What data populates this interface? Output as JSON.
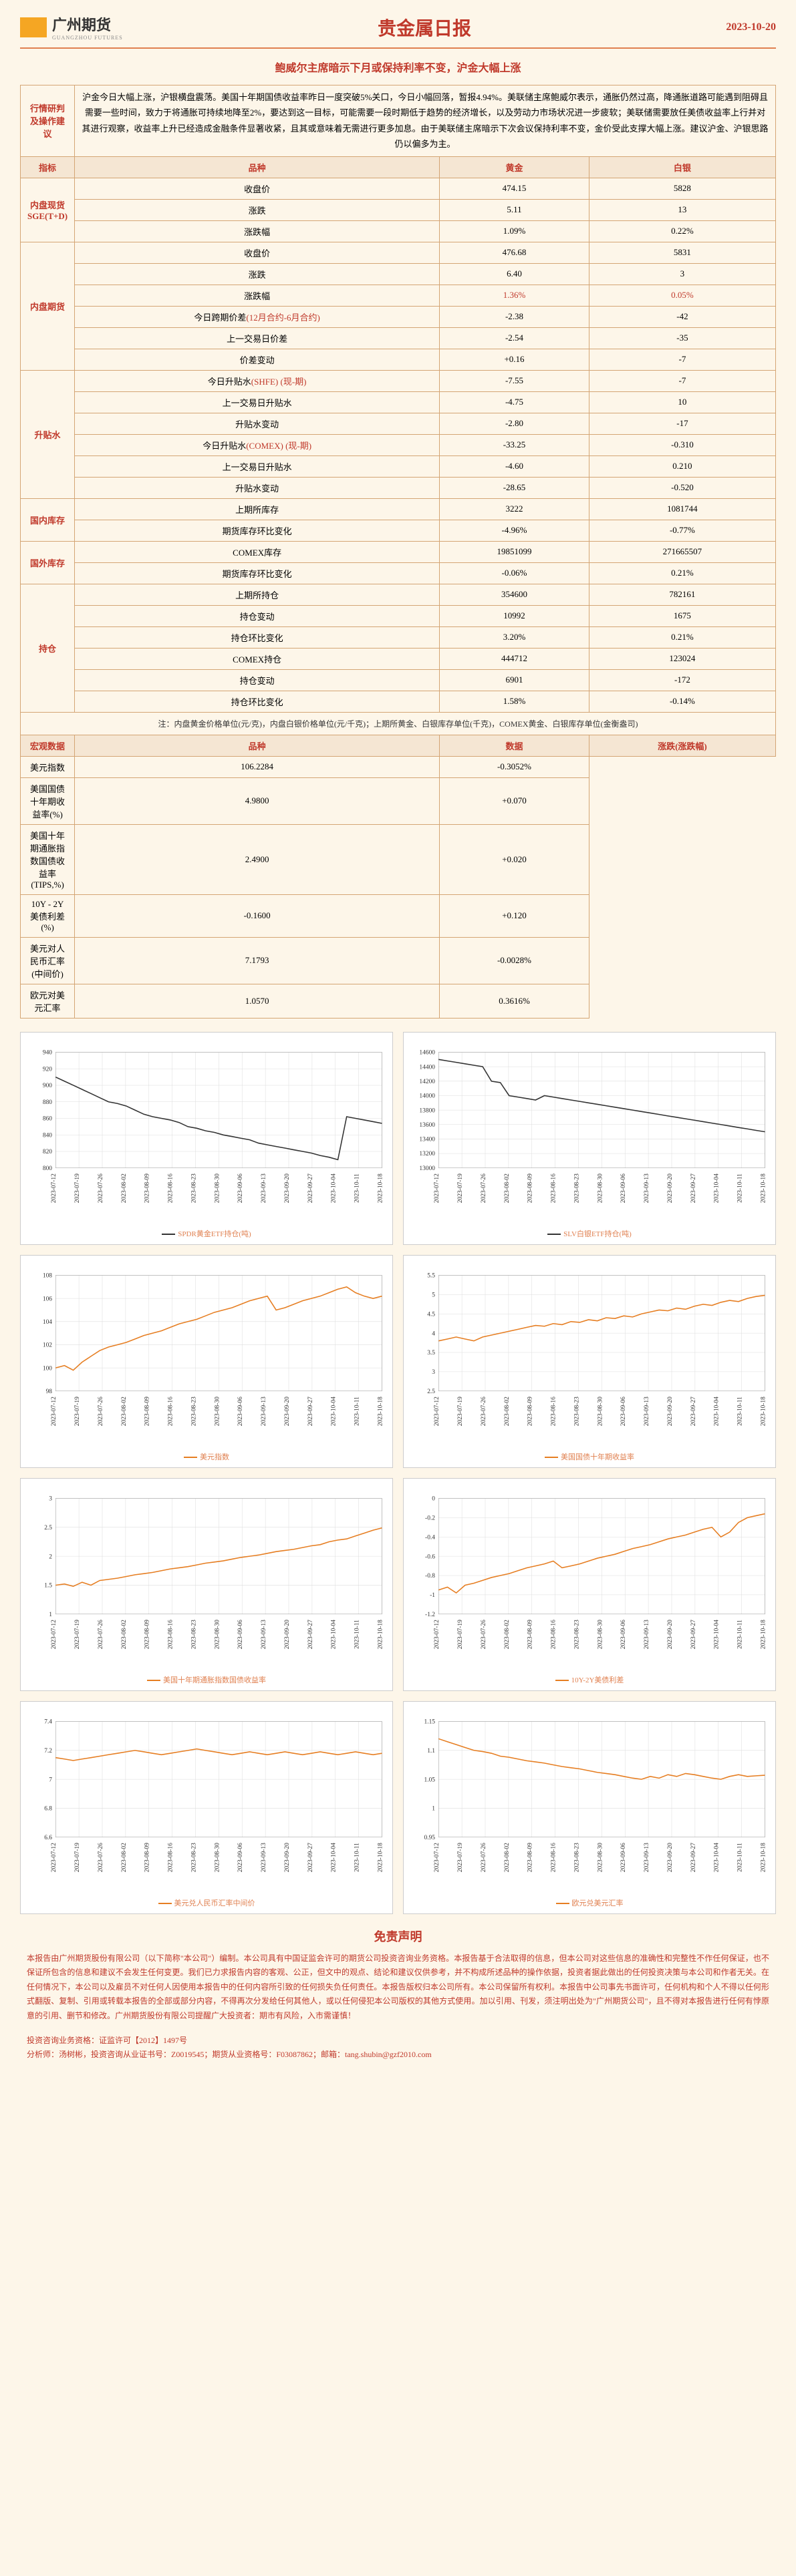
{
  "header": {
    "logo_text": "广州期货",
    "logo_sub": "GUANGZHOU FUTURES",
    "title": "贵金属日报",
    "date": "2023-10-20"
  },
  "subtitle": "鲍威尔主席暗示下月或保持利率不变，沪金大幅上涨",
  "analysis": {
    "label": "行情研判及操作建议",
    "text": "沪金今日大幅上涨，沪银横盘震荡。美国十年期国债收益率昨日一度突破5%关口，今日小幅回落，暂报4.94%。美联储主席鲍威尔表示，通胀仍然过高，降通胀道路可能遇到阻碍且需要一些时间，致力于将通胀可持续地降至2%，要达到这一目标，可能需要一段时期低于趋势的经济增长，以及劳动力市场状况进一步疲软；美联储需要放任美债收益率上行并对其进行观察，收益率上升已经造成金融条件显著收紧，且其或意味着无需进行更多加息。由于美联储主席暗示下次会议保持利率不变，金价受此支撑大幅上涨。建议沪金、沪银思路仍以偏多为主。"
  },
  "main_headers": [
    "指标",
    "品种",
    "黄金",
    "白银"
  ],
  "sections": [
    {
      "label": "内盘现货SGE(T+D)",
      "rows": [
        [
          "收盘价",
          "474.15",
          "5828"
        ],
        [
          "涨跌",
          "5.11",
          "13"
        ],
        [
          "涨跌幅",
          "1.09%",
          "0.22%"
        ]
      ]
    },
    {
      "label": "内盘期货",
      "rows": [
        [
          "收盘价",
          "476.68",
          "5831"
        ],
        [
          "涨跌",
          "6.40",
          "3"
        ],
        [
          "涨跌幅",
          "1.36%",
          "0.05%"
        ],
        [
          "今日跨期价差(12月合约-6月合约)",
          "-2.38",
          "-42"
        ],
        [
          "上一交易日价差",
          "-2.54",
          "-35"
        ],
        [
          "价差变动",
          "+0.16",
          "-7"
        ]
      ],
      "red_cells": [
        [
          2,
          1
        ],
        [
          2,
          2
        ]
      ]
    },
    {
      "label": "升贴水",
      "rows": [
        [
          "今日升贴水(SHFE) (现-期)",
          "-7.55",
          "-7"
        ],
        [
          "上一交易日升贴水",
          "-4.75",
          "10"
        ],
        [
          "升贴水变动",
          "-2.80",
          "-17"
        ],
        [
          "今日升贴水(COMEX) (现-期)",
          "-33.25",
          "-0.310"
        ],
        [
          "上一交易日升贴水",
          "-4.60",
          "0.210"
        ],
        [
          "升贴水变动",
          "-28.65",
          "-0.520"
        ]
      ]
    },
    {
      "label": "国内库存",
      "rows": [
        [
          "上期所库存",
          "3222",
          "1081744"
        ],
        [
          "期货库存环比变化",
          "-4.96%",
          "-0.77%"
        ]
      ]
    },
    {
      "label": "国外库存",
      "rows": [
        [
          "COMEX库存",
          "19851099",
          "271665507"
        ],
        [
          "期货库存环比变化",
          "-0.06%",
          "0.21%"
        ]
      ]
    },
    {
      "label": "持仓",
      "rows": [
        [
          "上期所持仓",
          "354600",
          "782161"
        ],
        [
          "持仓变动",
          "10992",
          "1675"
        ],
        [
          "持仓环比变化",
          "3.20%",
          "0.21%"
        ],
        [
          "COMEX持仓",
          "444712",
          "123024"
        ],
        [
          "持仓变动",
          "6901",
          "-172"
        ],
        [
          "持仓环比变化",
          "1.58%",
          "-0.14%"
        ]
      ]
    }
  ],
  "note": "注：内盘黄金价格单位(元/克)，内盘白银价格单位(元/千克)；上期所黄金、白银库存单位(千克)，COMEX黄金、白银库存单位(金衡盎司)",
  "macro": {
    "label": "宏观数据",
    "headers": [
      "品种",
      "数据",
      "涨跌(涨跌幅)"
    ],
    "rows": [
      [
        "美元指数",
        "106.2284",
        "-0.3052%"
      ],
      [
        "美国国债十年期收益率(%)",
        "4.9800",
        "+0.070"
      ],
      [
        "美国十年期通胀指数国债收益率(TIPS,%)",
        "2.4900",
        "+0.020"
      ],
      [
        "10Y - 2Y 美债利差(%)",
        "-0.1600",
        "+0.120"
      ],
      [
        "美元对人民币汇率(中间价)",
        "7.1793",
        "-0.0028%"
      ],
      [
        "欧元对美元汇率",
        "1.0570",
        "0.3616%"
      ]
    ]
  },
  "charts": [
    {
      "label": "SPDR黄金ETF持仓(吨)",
      "color": "#333333",
      "ylim": [
        800,
        940
      ],
      "yticks": [
        800,
        820,
        840,
        860,
        880,
        900,
        920,
        940
      ],
      "data": [
        910,
        905,
        900,
        895,
        890,
        885,
        880,
        878,
        875,
        870,
        865,
        862,
        860,
        858,
        855,
        850,
        848,
        845,
        843,
        840,
        838,
        836,
        834,
        830,
        828,
        826,
        824,
        822,
        820,
        818,
        815,
        813,
        810,
        862,
        860,
        858,
        856,
        854
      ]
    },
    {
      "label": "SLV白银ETF持仓(吨)",
      "color": "#333333",
      "ylim": [
        13000,
        14600
      ],
      "yticks": [
        13000,
        13200,
        13400,
        13600,
        13800,
        14000,
        14200,
        14400,
        14600
      ],
      "data": [
        14500,
        14480,
        14460,
        14440,
        14420,
        14400,
        14200,
        14180,
        14000,
        13980,
        13960,
        13940,
        14000,
        13980,
        13960,
        13940,
        13920,
        13900,
        13880,
        13860,
        13840,
        13820,
        13800,
        13780,
        13760,
        13740,
        13720,
        13700,
        13680,
        13660,
        13640,
        13620,
        13600,
        13580,
        13560,
        13540,
        13520,
        13500
      ]
    },
    {
      "label": "美元指数",
      "color": "#e67e22",
      "ylim": [
        98,
        108
      ],
      "yticks": [
        98,
        100,
        102,
        104,
        106,
        108
      ],
      "data": [
        100,
        100.2,
        99.8,
        100.5,
        101,
        101.5,
        101.8,
        102,
        102.2,
        102.5,
        102.8,
        103,
        103.2,
        103.5,
        103.8,
        104,
        104.2,
        104.5,
        104.8,
        105,
        105.2,
        105.5,
        105.8,
        106,
        106.2,
        105,
        105.2,
        105.5,
        105.8,
        106,
        106.2,
        106.5,
        106.8,
        107,
        106.5,
        106.2,
        106,
        106.2
      ]
    },
    {
      "label": "美国国债十年期收益率",
      "color": "#e67e22",
      "ylim": [
        2.5,
        5.5
      ],
      "yticks": [
        2.5,
        3.0,
        3.5,
        4.0,
        4.5,
        5.0,
        5.5
      ],
      "data": [
        3.8,
        3.85,
        3.9,
        3.85,
        3.8,
        3.9,
        3.95,
        4.0,
        4.05,
        4.1,
        4.15,
        4.2,
        4.18,
        4.25,
        4.22,
        4.3,
        4.28,
        4.35,
        4.32,
        4.4,
        4.38,
        4.45,
        4.42,
        4.5,
        4.55,
        4.6,
        4.58,
        4.65,
        4.62,
        4.7,
        4.75,
        4.72,
        4.8,
        4.85,
        4.82,
        4.9,
        4.95,
        4.98
      ]
    },
    {
      "label": "美国十年期通胀指数国债收益率",
      "color": "#e67e22",
      "ylim": [
        1.0,
        3.0
      ],
      "yticks": [
        1.0,
        1.5,
        2.0,
        2.5,
        3.0
      ],
      "data": [
        1.5,
        1.52,
        1.48,
        1.55,
        1.5,
        1.58,
        1.6,
        1.62,
        1.65,
        1.68,
        1.7,
        1.72,
        1.75,
        1.78,
        1.8,
        1.82,
        1.85,
        1.88,
        1.9,
        1.92,
        1.95,
        1.98,
        2.0,
        2.02,
        2.05,
        2.08,
        2.1,
        2.12,
        2.15,
        2.18,
        2.2,
        2.25,
        2.28,
        2.3,
        2.35,
        2.4,
        2.45,
        2.49
      ]
    },
    {
      "label": "10Y-2Y美债利差",
      "color": "#e67e22",
      "ylim": [
        -1.2,
        0.0
      ],
      "yticks": [
        -1.2,
        -1.0,
        -0.8,
        -0.6,
        -0.4,
        -0.2,
        0.0
      ],
      "data": [
        -0.95,
        -0.92,
        -0.98,
        -0.9,
        -0.88,
        -0.85,
        -0.82,
        -0.8,
        -0.78,
        -0.75,
        -0.72,
        -0.7,
        -0.68,
        -0.65,
        -0.72,
        -0.7,
        -0.68,
        -0.65,
        -0.62,
        -0.6,
        -0.58,
        -0.55,
        -0.52,
        -0.5,
        -0.48,
        -0.45,
        -0.42,
        -0.4,
        -0.38,
        -0.35,
        -0.32,
        -0.3,
        -0.4,
        -0.35,
        -0.25,
        -0.2,
        -0.18,
        -0.16
      ]
    },
    {
      "label": "美元兑人民币汇率中间价",
      "color": "#e67e22",
      "ylim": [
        6.6,
        7.4
      ],
      "yticks": [
        6.6,
        6.8,
        7.0,
        7.2,
        7.4
      ],
      "data": [
        7.15,
        7.14,
        7.13,
        7.14,
        7.15,
        7.16,
        7.17,
        7.18,
        7.19,
        7.2,
        7.19,
        7.18,
        7.17,
        7.18,
        7.19,
        7.2,
        7.21,
        7.2,
        7.19,
        7.18,
        7.17,
        7.18,
        7.19,
        7.18,
        7.17,
        7.18,
        7.19,
        7.18,
        7.17,
        7.18,
        7.19,
        7.18,
        7.17,
        7.18,
        7.19,
        7.18,
        7.17,
        7.18
      ]
    },
    {
      "label": "欧元兑美元汇率",
      "color": "#e67e22",
      "ylim": [
        0.95,
        1.15
      ],
      "yticks": [
        0.95,
        1.0,
        1.05,
        1.1,
        1.15
      ],
      "data": [
        1.12,
        1.115,
        1.11,
        1.105,
        1.1,
        1.098,
        1.095,
        1.09,
        1.088,
        1.085,
        1.082,
        1.08,
        1.078,
        1.075,
        1.072,
        1.07,
        1.068,
        1.065,
        1.062,
        1.06,
        1.058,
        1.055,
        1.052,
        1.05,
        1.055,
        1.052,
        1.058,
        1.055,
        1.06,
        1.058,
        1.055,
        1.052,
        1.05,
        1.055,
        1.058,
        1.055,
        1.056,
        1.057
      ]
    }
  ],
  "xlabels": [
    "2023-07-12",
    "2023-07-19",
    "2023-07-26",
    "2023-08-02",
    "2023-08-09",
    "2023-08-16",
    "2023-08-23",
    "2023-08-30",
    "2023-09-06",
    "2023-09-13",
    "2023-09-20",
    "2023-09-27",
    "2023-10-04",
    "2023-10-11",
    "2023-10-18"
  ],
  "disclaimer": {
    "title": "免责声明",
    "text": "本报告由广州期货股份有限公司（以下简称\"本公司\"）编制。本公司具有中国证监会许可的期货公司投资咨询业务资格。本报告基于合法取得的信息，但本公司对这些信息的准确性和完整性不作任何保证，也不保证所包含的信息和建议不会发生任何变更。我们已力求报告内容的客观、公正，但文中的观点、结论和建议仅供参考，并不构成所述品种的操作依据，投资者据此做出的任何投资决策与本公司和作者无关。在任何情况下，本公司以及雇员不对任何人因使用本报告中的任何内容所引致的任何损失负任何责任。本报告版权归本公司所有。本公司保留所有权利。本报告中公司事先书面许可，任何机构和个人不得以任何形式翻版、复制、引用或转载本报告的全部或部分内容，不得再次分发给任何其他人，或以任何侵犯本公司版权的其他方式使用。加以引用、刊发，须注明出处为\"广州期货公司\"，且不得对本报告进行任何有悖原意的引用、删节和修改。广州期货股份有限公司提醒广大投资者：期市有风险，入市需谨慎！"
  },
  "footer": {
    "line1": "投资咨询业务资格：证监许可【2012】1497号",
    "line2": "分析师：汤树彬，投资咨询从业证书号：Z0019545；期货从业资格号：F03087862；邮箱：tang.shubin@gzf2010.com"
  }
}
